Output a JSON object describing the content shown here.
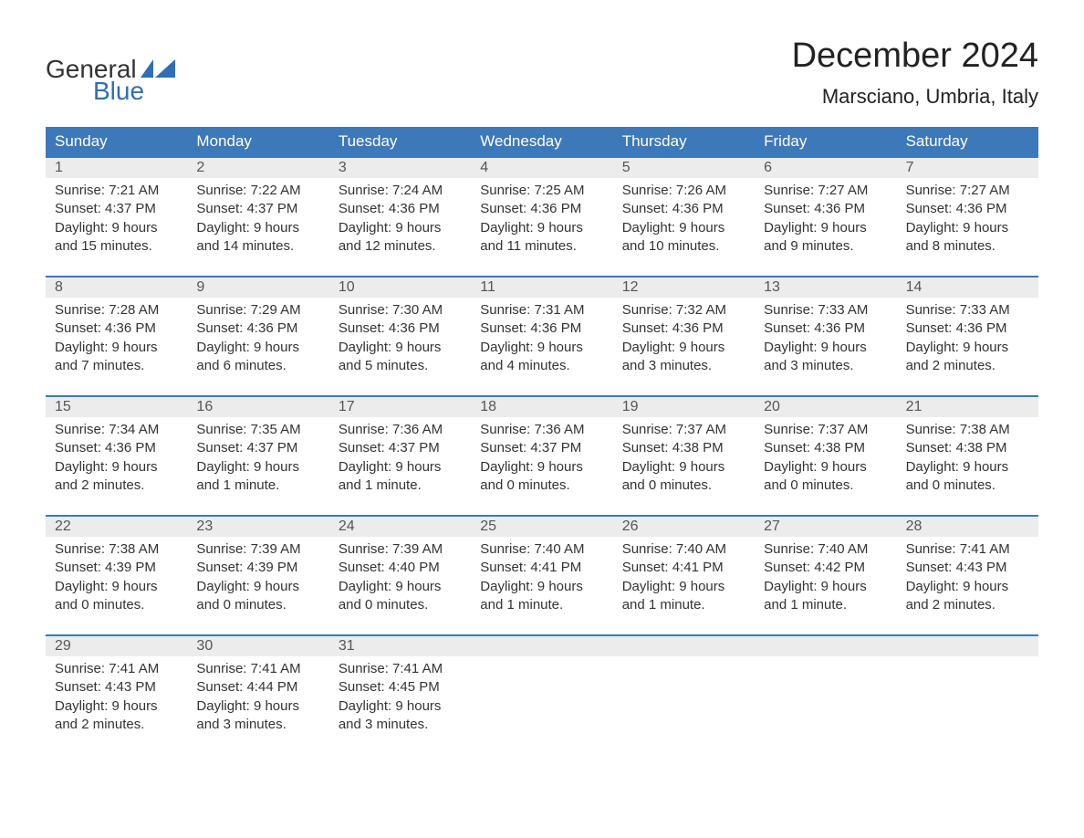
{
  "logo": {
    "text1": "General",
    "text2": "Blue",
    "flag_color": "#2f6eb5"
  },
  "title": "December 2024",
  "location": "Marsciano, Umbria, Italy",
  "colors": {
    "header_bg": "#3d78b8",
    "header_text": "#ffffff",
    "daynum_bg": "#ececec",
    "week_border": "#3d78b8",
    "body_text": "#333333",
    "logo_blue": "#2f6eb5"
  },
  "day_labels": [
    "Sunday",
    "Monday",
    "Tuesday",
    "Wednesday",
    "Thursday",
    "Friday",
    "Saturday"
  ],
  "weeks": [
    [
      {
        "n": "1",
        "sunrise": "7:21 AM",
        "sunset": "4:37 PM",
        "daylight": "9 hours and 15 minutes."
      },
      {
        "n": "2",
        "sunrise": "7:22 AM",
        "sunset": "4:37 PM",
        "daylight": "9 hours and 14 minutes."
      },
      {
        "n": "3",
        "sunrise": "7:24 AM",
        "sunset": "4:36 PM",
        "daylight": "9 hours and 12 minutes."
      },
      {
        "n": "4",
        "sunrise": "7:25 AM",
        "sunset": "4:36 PM",
        "daylight": "9 hours and 11 minutes."
      },
      {
        "n": "5",
        "sunrise": "7:26 AM",
        "sunset": "4:36 PM",
        "daylight": "9 hours and 10 minutes."
      },
      {
        "n": "6",
        "sunrise": "7:27 AM",
        "sunset": "4:36 PM",
        "daylight": "9 hours and 9 minutes."
      },
      {
        "n": "7",
        "sunrise": "7:27 AM",
        "sunset": "4:36 PM",
        "daylight": "9 hours and 8 minutes."
      }
    ],
    [
      {
        "n": "8",
        "sunrise": "7:28 AM",
        "sunset": "4:36 PM",
        "daylight": "9 hours and 7 minutes."
      },
      {
        "n": "9",
        "sunrise": "7:29 AM",
        "sunset": "4:36 PM",
        "daylight": "9 hours and 6 minutes."
      },
      {
        "n": "10",
        "sunrise": "7:30 AM",
        "sunset": "4:36 PM",
        "daylight": "9 hours and 5 minutes."
      },
      {
        "n": "11",
        "sunrise": "7:31 AM",
        "sunset": "4:36 PM",
        "daylight": "9 hours and 4 minutes."
      },
      {
        "n": "12",
        "sunrise": "7:32 AM",
        "sunset": "4:36 PM",
        "daylight": "9 hours and 3 minutes."
      },
      {
        "n": "13",
        "sunrise": "7:33 AM",
        "sunset": "4:36 PM",
        "daylight": "9 hours and 3 minutes."
      },
      {
        "n": "14",
        "sunrise": "7:33 AM",
        "sunset": "4:36 PM",
        "daylight": "9 hours and 2 minutes."
      }
    ],
    [
      {
        "n": "15",
        "sunrise": "7:34 AM",
        "sunset": "4:36 PM",
        "daylight": "9 hours and 2 minutes."
      },
      {
        "n": "16",
        "sunrise": "7:35 AM",
        "sunset": "4:37 PM",
        "daylight": "9 hours and 1 minute."
      },
      {
        "n": "17",
        "sunrise": "7:36 AM",
        "sunset": "4:37 PM",
        "daylight": "9 hours and 1 minute."
      },
      {
        "n": "18",
        "sunrise": "7:36 AM",
        "sunset": "4:37 PM",
        "daylight": "9 hours and 0 minutes."
      },
      {
        "n": "19",
        "sunrise": "7:37 AM",
        "sunset": "4:38 PM",
        "daylight": "9 hours and 0 minutes."
      },
      {
        "n": "20",
        "sunrise": "7:37 AM",
        "sunset": "4:38 PM",
        "daylight": "9 hours and 0 minutes."
      },
      {
        "n": "21",
        "sunrise": "7:38 AM",
        "sunset": "4:38 PM",
        "daylight": "9 hours and 0 minutes."
      }
    ],
    [
      {
        "n": "22",
        "sunrise": "7:38 AM",
        "sunset": "4:39 PM",
        "daylight": "9 hours and 0 minutes."
      },
      {
        "n": "23",
        "sunrise": "7:39 AM",
        "sunset": "4:39 PM",
        "daylight": "9 hours and 0 minutes."
      },
      {
        "n": "24",
        "sunrise": "7:39 AM",
        "sunset": "4:40 PM",
        "daylight": "9 hours and 0 minutes."
      },
      {
        "n": "25",
        "sunrise": "7:40 AM",
        "sunset": "4:41 PM",
        "daylight": "9 hours and 1 minute."
      },
      {
        "n": "26",
        "sunrise": "7:40 AM",
        "sunset": "4:41 PM",
        "daylight": "9 hours and 1 minute."
      },
      {
        "n": "27",
        "sunrise": "7:40 AM",
        "sunset": "4:42 PM",
        "daylight": "9 hours and 1 minute."
      },
      {
        "n": "28",
        "sunrise": "7:41 AM",
        "sunset": "4:43 PM",
        "daylight": "9 hours and 2 minutes."
      }
    ],
    [
      {
        "n": "29",
        "sunrise": "7:41 AM",
        "sunset": "4:43 PM",
        "daylight": "9 hours and 2 minutes."
      },
      {
        "n": "30",
        "sunrise": "7:41 AM",
        "sunset": "4:44 PM",
        "daylight": "9 hours and 3 minutes."
      },
      {
        "n": "31",
        "sunrise": "7:41 AM",
        "sunset": "4:45 PM",
        "daylight": "9 hours and 3 minutes."
      },
      null,
      null,
      null,
      null
    ]
  ],
  "labels": {
    "sunrise": "Sunrise: ",
    "sunset": "Sunset: ",
    "daylight": "Daylight: "
  }
}
